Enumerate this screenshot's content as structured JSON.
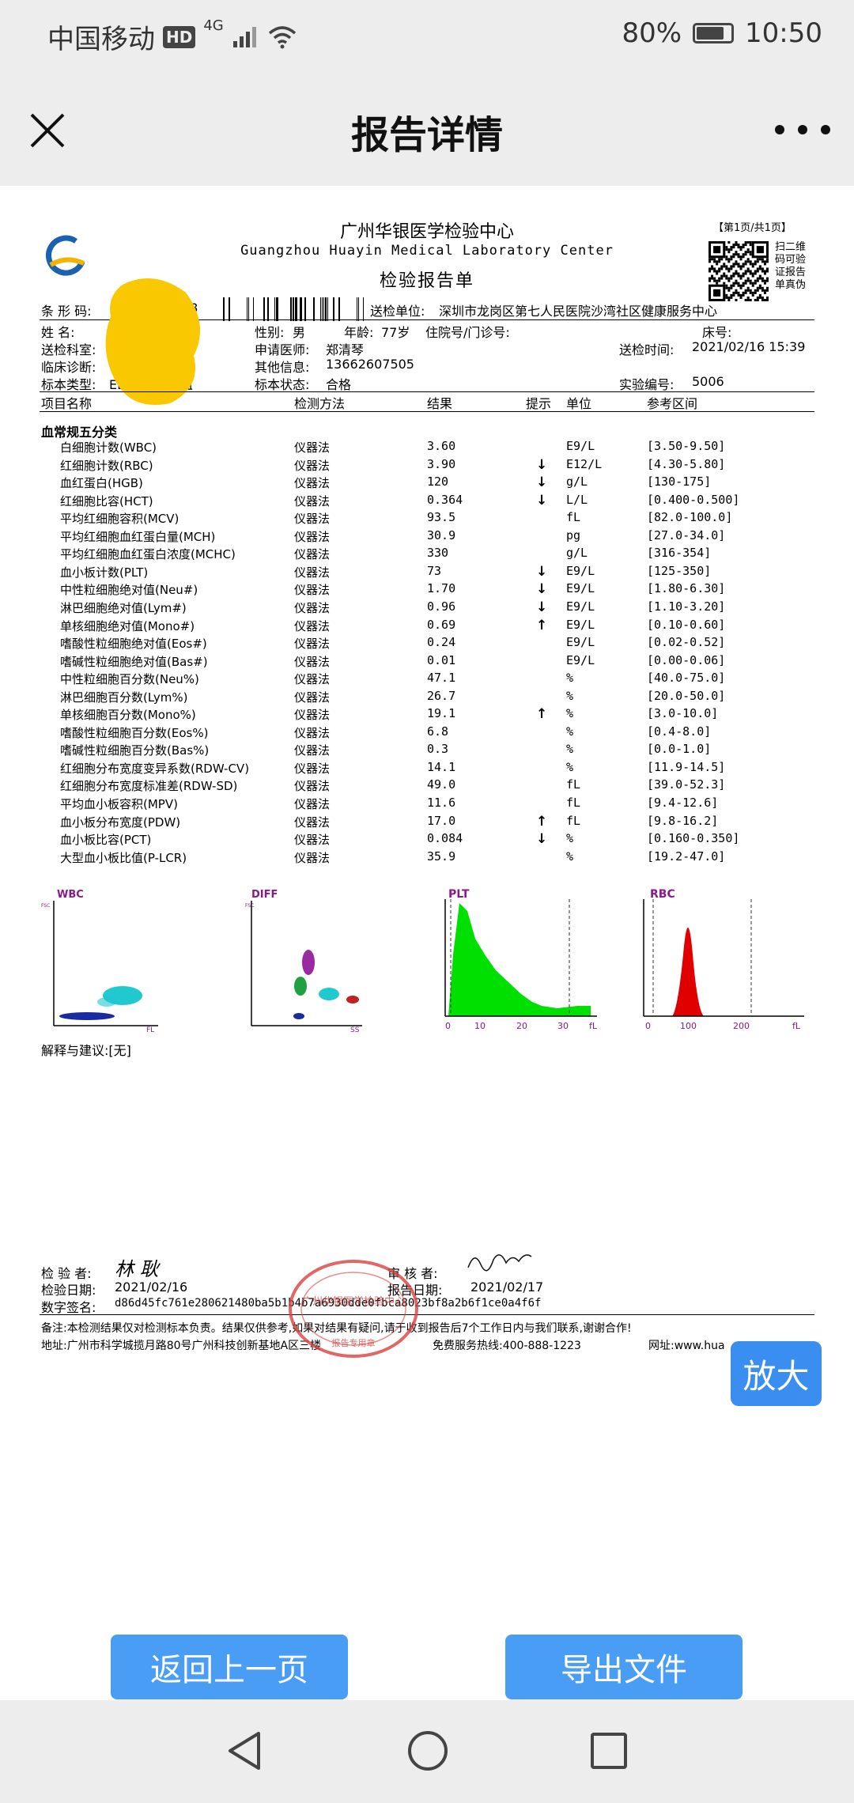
{
  "status": {
    "carrier": "中国移动",
    "hd": "HD",
    "signal": "4G",
    "battery": "80%",
    "battery_level": 0.8,
    "time": "10:50"
  },
  "nav": {
    "title": "报告详情",
    "close_icon": "close-icon",
    "more_icon": "more-icon"
  },
  "report": {
    "lab_cn": "广州华银医学检验中心",
    "lab_en": "Guangzhou Huayin Medical Laboratory Center",
    "report_title": "检验报告单",
    "page": "【第1页/共1页】",
    "qr_text": "扫二维\n码可验\n证报告\n单真伪",
    "barcode_label": "条 形 码:",
    "barcode_tail": "58",
    "send_unit_label": "送检单位:",
    "send_unit": "深圳市龙岗区第七人民医院沙湾社区健康服务中心",
    "name_label": "姓    名:",
    "gender_label": "性别:",
    "gender": "男",
    "age_label": "年龄:",
    "age": "77岁",
    "inpatient_label": "住院号/门诊号:",
    "bed_label": "床号:",
    "dept_label": "送检科室:",
    "doctor_label": "申请医师:",
    "doctor": "郑清琴",
    "send_time_label": "送检时间:",
    "send_time": "2021/02/16 15:39",
    "diagnosis_label": "临床诊断:",
    "other_label": "其他信息:",
    "other": "13662607505",
    "sample_type_label": "标本类型:",
    "sample_type": "EDTA抗凝全血",
    "sample_status_label": "标本状态:",
    "sample_status": "合格",
    "exp_no_label": "实验编号:",
    "exp_no": "5006",
    "columns": [
      "项目名称",
      "检测方法",
      "结果",
      "提示",
      "单位",
      "参考区间"
    ],
    "section": "血常规五分类",
    "rows": [
      {
        "name": "白细胞计数(WBC)",
        "method": "仪器法",
        "result": "3.60",
        "flag": "",
        "unit": "E9/L",
        "ref": "[3.50-9.50]"
      },
      {
        "name": "红细胞计数(RBC)",
        "method": "仪器法",
        "result": "3.90",
        "flag": "↓",
        "unit": "E12/L",
        "ref": "[4.30-5.80]"
      },
      {
        "name": "血红蛋白(HGB)",
        "method": "仪器法",
        "result": "120",
        "flag": "↓",
        "unit": "g/L",
        "ref": "[130-175]"
      },
      {
        "name": "红细胞比容(HCT)",
        "method": "仪器法",
        "result": "0.364",
        "flag": "↓",
        "unit": "L/L",
        "ref": "[0.400-0.500]"
      },
      {
        "name": "平均红细胞容积(MCV)",
        "method": "仪器法",
        "result": "93.5",
        "flag": "",
        "unit": "fL",
        "ref": "[82.0-100.0]"
      },
      {
        "name": "平均红细胞血红蛋白量(MCH)",
        "method": "仪器法",
        "result": "30.9",
        "flag": "",
        "unit": "pg",
        "ref": "[27.0-34.0]"
      },
      {
        "name": "平均红细胞血红蛋白浓度(MCHC)",
        "method": "仪器法",
        "result": "330",
        "flag": "",
        "unit": "g/L",
        "ref": "[316-354]"
      },
      {
        "name": "血小板计数(PLT)",
        "method": "仪器法",
        "result": "73",
        "flag": "↓",
        "unit": "E9/L",
        "ref": "[125-350]"
      },
      {
        "name": "中性粒细胞绝对值(Neu#)",
        "method": "仪器法",
        "result": "1.70",
        "flag": "↓",
        "unit": "E9/L",
        "ref": "[1.80-6.30]"
      },
      {
        "name": "淋巴细胞绝对值(Lym#)",
        "method": "仪器法",
        "result": "0.96",
        "flag": "↓",
        "unit": "E9/L",
        "ref": "[1.10-3.20]"
      },
      {
        "name": "单核细胞绝对值(Mono#)",
        "method": "仪器法",
        "result": "0.69",
        "flag": "↑",
        "unit": "E9/L",
        "ref": "[0.10-0.60]"
      },
      {
        "name": "嗜酸性粒细胞绝对值(Eos#)",
        "method": "仪器法",
        "result": "0.24",
        "flag": "",
        "unit": "E9/L",
        "ref": "[0.02-0.52]"
      },
      {
        "name": "嗜碱性粒细胞绝对值(Bas#)",
        "method": "仪器法",
        "result": "0.01",
        "flag": "",
        "unit": "E9/L",
        "ref": "[0.00-0.06]"
      },
      {
        "name": "中性粒细胞百分数(Neu%)",
        "method": "仪器法",
        "result": "47.1",
        "flag": "",
        "unit": "%",
        "ref": "[40.0-75.0]"
      },
      {
        "name": "淋巴细胞百分数(Lym%)",
        "method": "仪器法",
        "result": "26.7",
        "flag": "",
        "unit": "%",
        "ref": "[20.0-50.0]"
      },
      {
        "name": "单核细胞百分数(Mono%)",
        "method": "仪器法",
        "result": "19.1",
        "flag": "↑",
        "unit": "%",
        "ref": "[3.0-10.0]"
      },
      {
        "name": "嗜酸性粒细胞百分数(Eos%)",
        "method": "仪器法",
        "result": "6.8",
        "flag": "",
        "unit": "%",
        "ref": "[0.4-8.0]"
      },
      {
        "name": "嗜碱性粒细胞百分数(Bas%)",
        "method": "仪器法",
        "result": "0.3",
        "flag": "",
        "unit": "%",
        "ref": "[0.0-1.0]"
      },
      {
        "name": "红细胞分布宽度变异系数(RDW-CV)",
        "method": "仪器法",
        "result": "14.1",
        "flag": "",
        "unit": "%",
        "ref": "[11.9-14.5]"
      },
      {
        "name": "红细胞分布宽度标准差(RDW-SD)",
        "method": "仪器法",
        "result": "49.0",
        "flag": "",
        "unit": "fL",
        "ref": "[39.0-52.3]"
      },
      {
        "name": "平均血小板容积(MPV)",
        "method": "仪器法",
        "result": "11.6",
        "flag": "",
        "unit": "fL",
        "ref": "[9.4-12.6]"
      },
      {
        "name": "血小板分布宽度(PDW)",
        "method": "仪器法",
        "result": "17.0",
        "flag": "↑",
        "unit": "fL",
        "ref": "[9.8-16.2]"
      },
      {
        "name": "血小板比容(PCT)",
        "method": "仪器法",
        "result": "0.084",
        "flag": "↓",
        "unit": "%",
        "ref": "[0.160-0.350]"
      },
      {
        "name": "大型血小板比值(P-LCR)",
        "method": "仪器法",
        "result": "35.9",
        "flag": "",
        "unit": "%",
        "ref": "[19.2-47.0]"
      }
    ],
    "graphs": {
      "wbc": "WBC",
      "wbc_y": "FSC",
      "wbc_x": "FL",
      "diff": "DIFF",
      "diff_y": "FSC",
      "diff_x": "SS",
      "plt": "PLT",
      "plt_ticks": [
        "0",
        "10",
        "20",
        "30",
        "fL"
      ],
      "rbc": "RBC",
      "rbc_ticks": [
        "0",
        "100",
        "200",
        "fL"
      ]
    },
    "advice": "解释与建议:[无]",
    "tester_label": "检 验 者:",
    "tester_sig": "林 耿",
    "test_date_label": "检验日期:",
    "test_date": "2021/02/16",
    "reviewer_label": "审 核 者:",
    "report_date_label": "报告日期:",
    "report_date": "2021/02/17",
    "digital_sig_label": "数字签名:",
    "digital_sig": "d86d45fc761e280621480ba5b1b4b7a6930dde0fbca8023bf8a2b6f1ce0a4f6f",
    "note": "备注:本检测结果仅对检测标本负责。结果仅供参考,如果对结果有疑问,请于收到报告后7个工作日内与我们联系,谢谢合作!",
    "address": "地址:广州市科学城揽月路80号广州科技创新基地A区三楼",
    "hotline": "免费服务热线:400-888-1223",
    "website": "网址:www.hua",
    "stamp_text": "广州华银医学检验中心",
    "stamp_sub": "报告专用章"
  },
  "zoom_label": "放大",
  "buttons": {
    "back": "返回上一页",
    "export": "导出文件"
  },
  "colors": {
    "accent": "#4a9df5",
    "plt_fill": "#00e000",
    "rbc_fill": "#e00000",
    "stamp": "#d94040",
    "blot": "#f9c800"
  }
}
